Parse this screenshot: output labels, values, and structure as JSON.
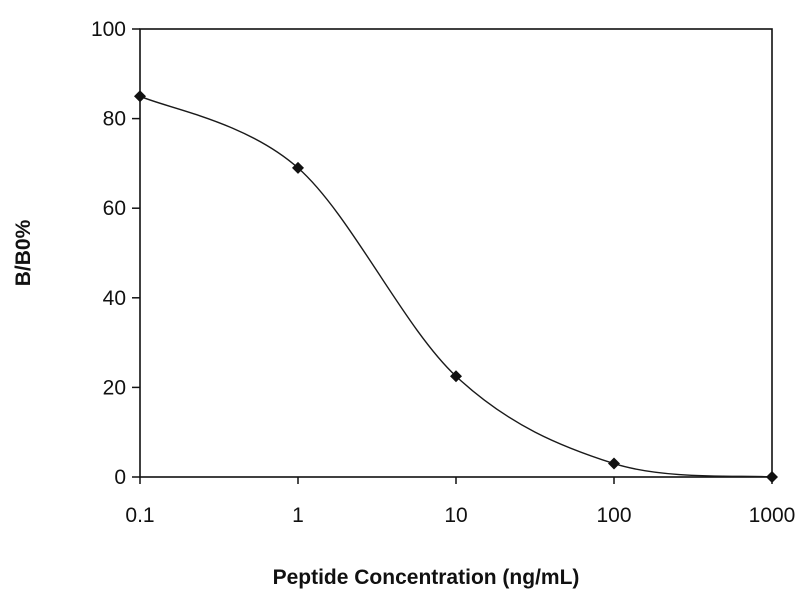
{
  "chart_data": {
    "type": "line",
    "title": "",
    "xlabel": "Peptide Concentration (ng/mL)",
    "ylabel": "B/B0%",
    "x_scale": "log",
    "xlim": [
      0.1,
      1000
    ],
    "ylim": [
      0,
      100
    ],
    "x_ticks": [
      "0.1",
      "1",
      "10",
      "100",
      "1000"
    ],
    "y_ticks": [
      "0",
      "20",
      "40",
      "60",
      "80",
      "100"
    ],
    "grid": false,
    "legend": "none",
    "series": [
      {
        "x": [
          0.1,
          1,
          10,
          100,
          1000
        ],
        "y": [
          85,
          69,
          22.5,
          3,
          0
        ],
        "marker": "diamond",
        "line": "smoothed"
      }
    ],
    "colors": {
      "line": "#1a1a1a",
      "marker": "#111111",
      "axis": "#111111"
    }
  }
}
